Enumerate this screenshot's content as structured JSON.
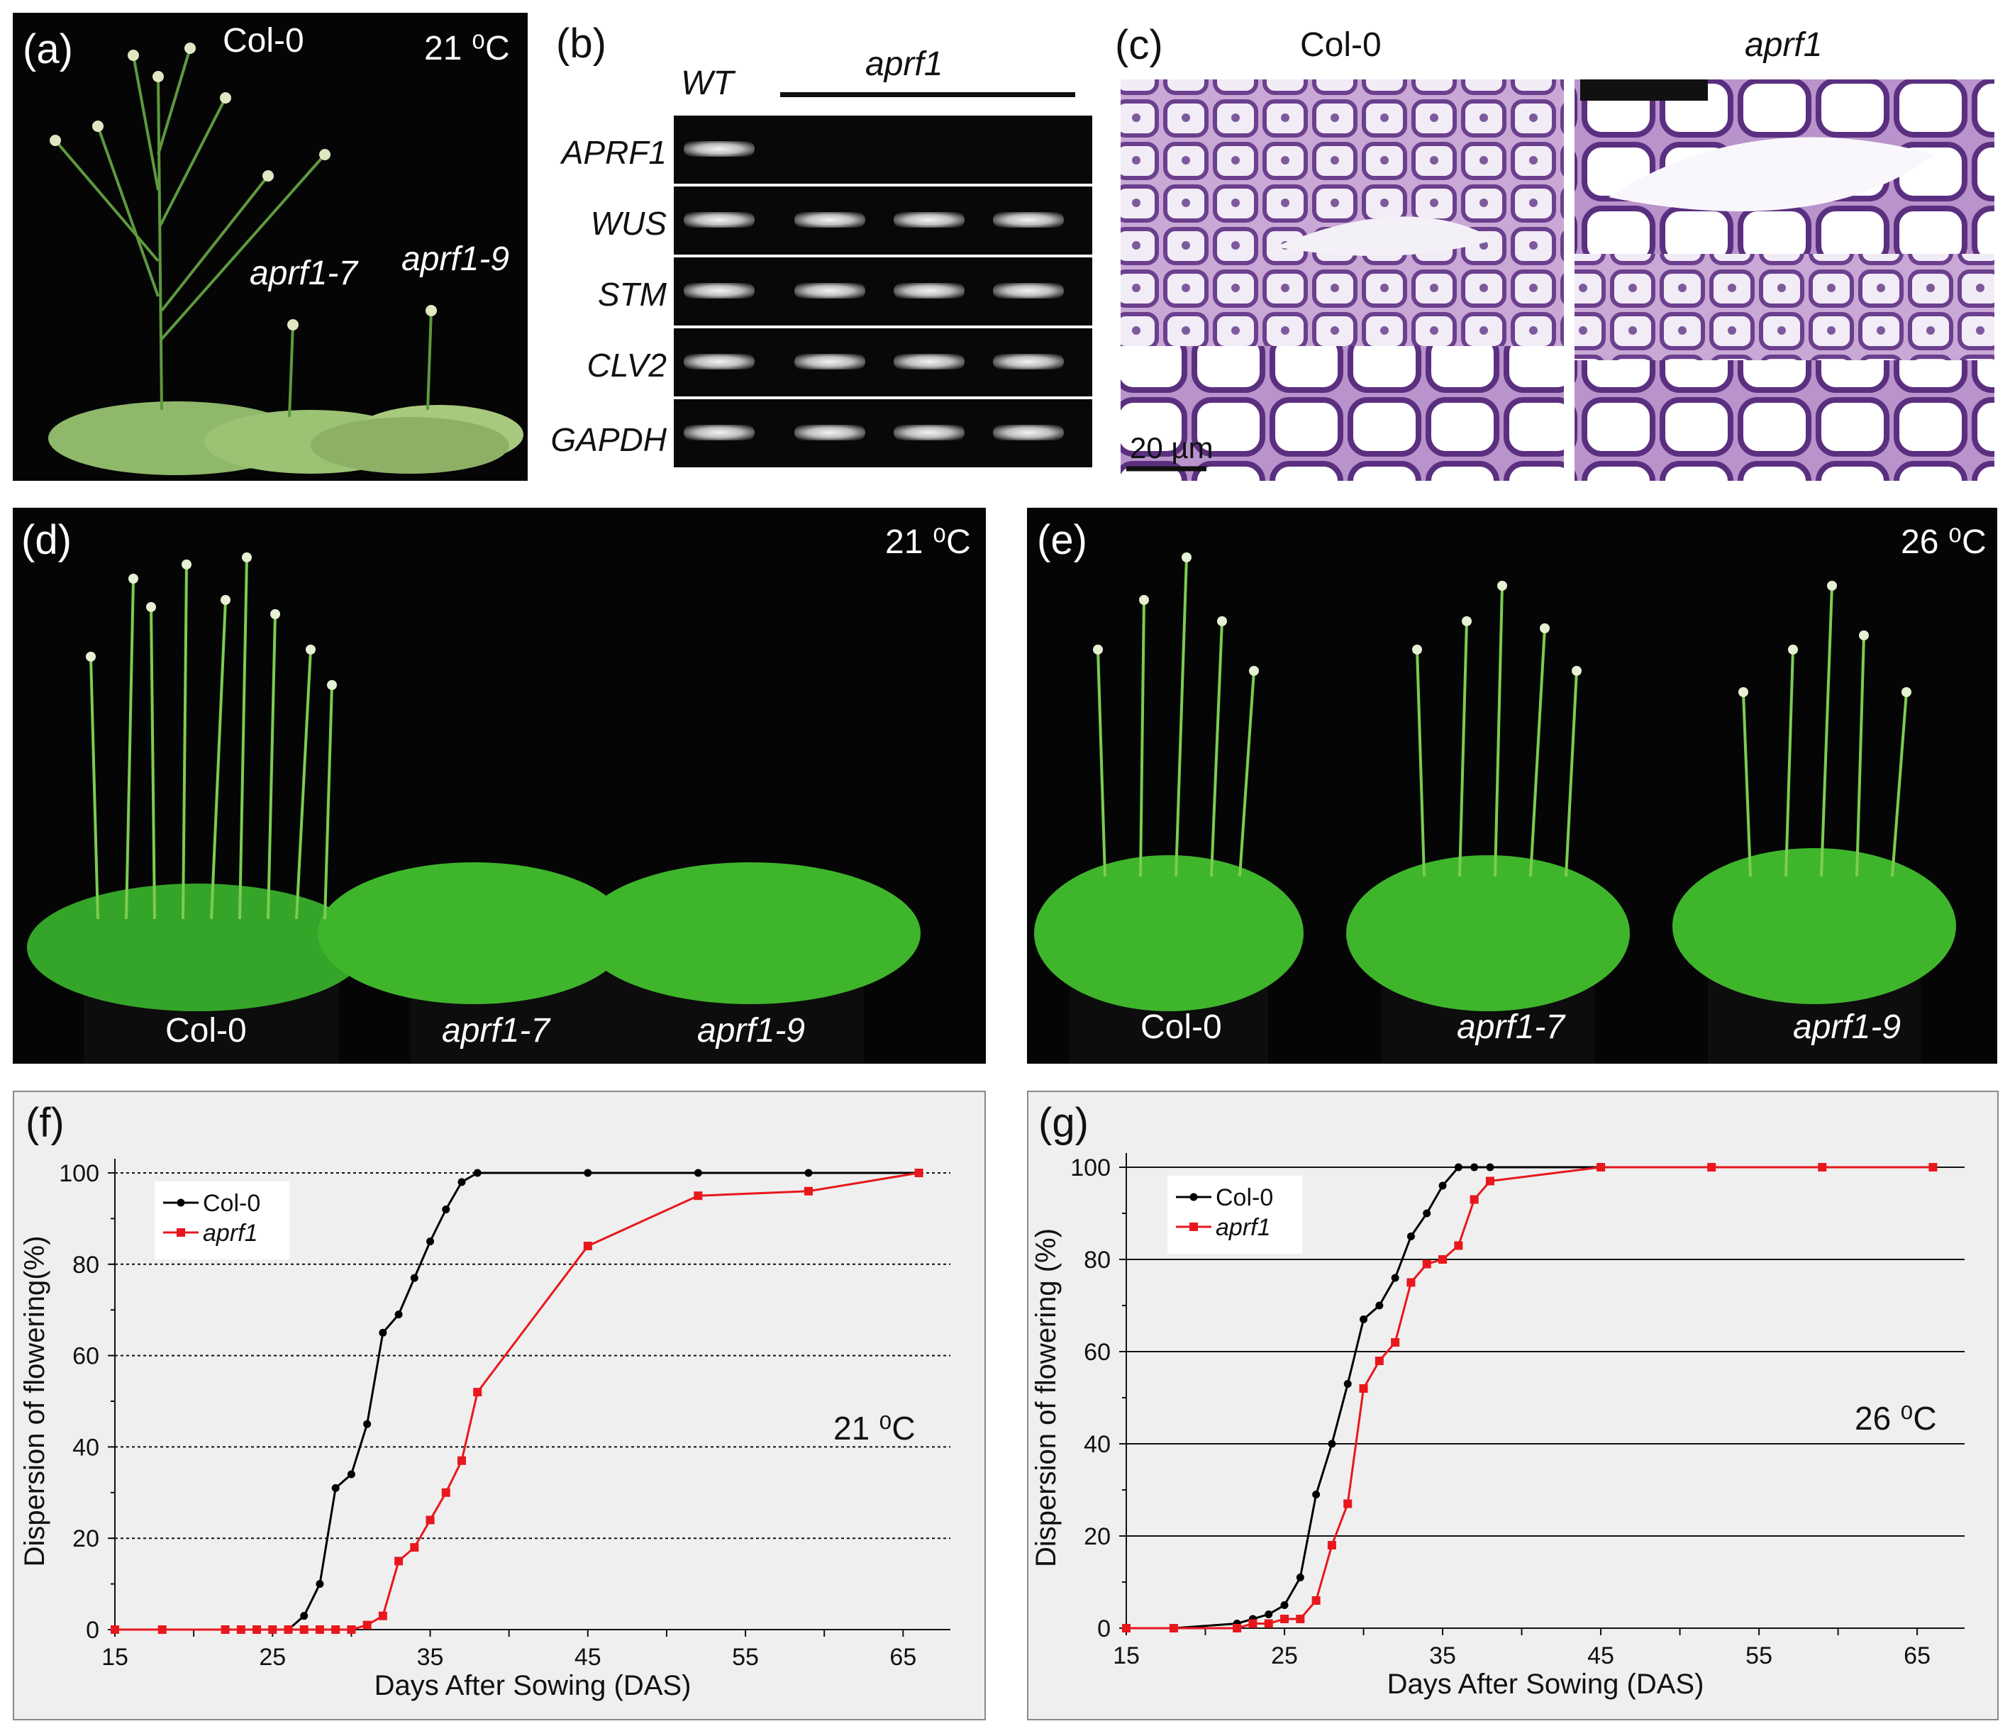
{
  "panel_a": {
    "label": "(a)",
    "temp": "21 ⁰C",
    "col0": "Col-0",
    "aprf1_7": "aprf1-7",
    "aprf1_9": "aprf1-9"
  },
  "panel_b": {
    "label": "(b)",
    "wt": "WT",
    "aprf1": "aprf1",
    "genes": [
      "APRF1",
      "WUS",
      "STM",
      "CLV2",
      "GAPDH"
    ]
  },
  "panel_c": {
    "label": "(c)",
    "col0": "Col-0",
    "aprf1": "aprf1",
    "scale": "20 µm"
  },
  "panel_d": {
    "label": "(d)",
    "temp": "21 ⁰C",
    "col0": "Col-0",
    "aprf1_7": "aprf1-7",
    "aprf1_9": "aprf1-9"
  },
  "panel_e": {
    "label": "(e)",
    "temp": "26 ⁰C",
    "col0": "Col-0",
    "aprf1_7": "aprf1-7",
    "aprf1_9": "aprf1-9"
  },
  "panel_f": {
    "label": "(f)"
  },
  "panel_g": {
    "label": "(g)"
  },
  "colors": {
    "col0": "#000000",
    "aprf1": "#e8171c",
    "stain": "#6b3f8e",
    "plant": "#3fb52c"
  },
  "chart_data": [
    {
      "id": "f",
      "type": "line",
      "xlabel": "Days After Sowing (DAS)",
      "ylabel": "Dispersion of flowering(%)",
      "annotation": "21 ⁰C",
      "xlim": [
        15,
        68
      ],
      "ylim": [
        0,
        100
      ],
      "xticks": [
        15,
        25,
        35,
        45,
        55,
        65
      ],
      "yticks": [
        0,
        20,
        40,
        60,
        80,
        100
      ],
      "grid": "dotted horizontal",
      "legend": "top-left",
      "series": [
        {
          "name": "Col-0",
          "marker": "circle",
          "x": [
            15,
            18,
            22,
            23,
            24,
            25,
            26,
            27,
            28,
            29,
            30,
            31,
            32,
            33,
            34,
            35,
            36,
            37,
            38,
            45,
            52,
            59,
            66
          ],
          "y": [
            0,
            0,
            0,
            0,
            0,
            0,
            0,
            3,
            10,
            31,
            34,
            45,
            65,
            69,
            77,
            85,
            92,
            98,
            100,
            100,
            100,
            100,
            100
          ]
        },
        {
          "name": "aprf1",
          "marker": "square",
          "x": [
            15,
            18,
            22,
            23,
            24,
            25,
            26,
            27,
            28,
            29,
            30,
            31,
            32,
            33,
            34,
            35,
            36,
            37,
            38,
            45,
            52,
            59,
            66
          ],
          "y": [
            0,
            0,
            0,
            0,
            0,
            0,
            0,
            0,
            0,
            0,
            0,
            1,
            3,
            15,
            18,
            24,
            30,
            37,
            52,
            84,
            95,
            96,
            100
          ]
        }
      ]
    },
    {
      "id": "g",
      "type": "line",
      "xlabel": "Days After Sowing (DAS)",
      "ylabel": "Dispersion of flowering (%)",
      "annotation": "26 ⁰C",
      "xlim": [
        15,
        68
      ],
      "ylim": [
        0,
        100
      ],
      "xticks": [
        15,
        25,
        35,
        45,
        55,
        65
      ],
      "yticks": [
        0,
        20,
        40,
        60,
        80,
        100
      ],
      "grid": "solid horizontal",
      "legend": "top-left",
      "series": [
        {
          "name": "Col-0",
          "marker": "circle",
          "x": [
            15,
            18,
            22,
            23,
            24,
            25,
            26,
            27,
            28,
            29,
            30,
            31,
            32,
            33,
            34,
            35,
            36,
            37,
            38,
            45
          ],
          "y": [
            0,
            0,
            1,
            2,
            3,
            5,
            11,
            29,
            40,
            53,
            67,
            70,
            76,
            85,
            90,
            96,
            100,
            100,
            100,
            100
          ]
        },
        {
          "name": "aprf1",
          "marker": "square",
          "x": [
            15,
            18,
            22,
            23,
            24,
            25,
            26,
            27,
            28,
            29,
            30,
            31,
            32,
            33,
            34,
            35,
            36,
            37,
            38,
            45,
            52,
            59,
            66
          ],
          "y": [
            0,
            0,
            0,
            1,
            1,
            2,
            2,
            6,
            18,
            27,
            52,
            58,
            62,
            75,
            79,
            80,
            83,
            93,
            97,
            100,
            100,
            100,
            100
          ]
        }
      ]
    }
  ]
}
